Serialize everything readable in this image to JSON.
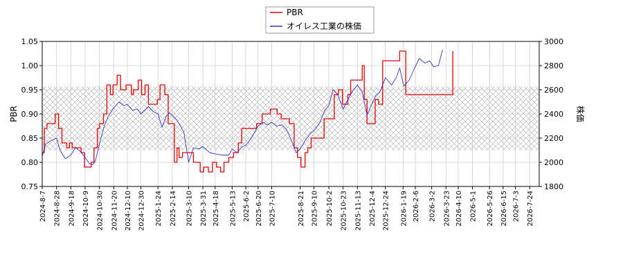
{
  "chart_data": {
    "type": "line",
    "title": "",
    "legend": {
      "placement": "top-center",
      "entries": [
        {
          "label": "PBR",
          "color": "#dd0000"
        },
        {
          "label": "オイレス工業の株価",
          "color": "#3333cc"
        }
      ]
    },
    "y_left": {
      "label": "PBR",
      "min": 0.75,
      "max": 1.05,
      "ticks": [
        "0.75",
        "0.80",
        "0.85",
        "0.90",
        "0.95",
        "1.00",
        "1.05"
      ]
    },
    "y_right": {
      "label": "株価",
      "min": 1800,
      "max": 3000,
      "ticks": [
        "1800",
        "2000",
        "2200",
        "2400",
        "2600",
        "2800",
        "3000"
      ]
    },
    "x_axis": {
      "start": "2024-08-07",
      "end": "2026-08-07",
      "tick_labels": [
        "2024-8-7",
        "2024-8-28",
        "2024-9-18",
        "2024-10-9",
        "2024-10-30",
        "2024-11-20",
        "2024-12-10",
        "2024-12-30",
        "2025-1-24",
        "2025-2-14",
        "2025-3-10",
        "2025-3-31",
        "2025-4-18",
        "2025-5-13",
        "2025-6-2",
        "2025-6-20",
        "2025-7-10",
        "2025-8-21",
        "2025-9-10",
        "2025-10-2",
        "2025-10-23",
        "2025-11-13",
        "2025-12-4",
        "2025-12-24",
        "2026-1-19",
        "2026-2-6",
        "2026-3-2",
        "2026-3-23",
        "2026-4-10",
        "2026-5-1",
        "2026-5-26",
        "2026-6-15",
        "2026-7-3",
        "2026-7-24"
      ]
    },
    "grid": true,
    "band": {
      "from": 0.825,
      "to": 0.957,
      "pattern": "crosshatch"
    },
    "series": [
      {
        "name": "PBR",
        "axis": "left",
        "color": "#dd0000",
        "step": true,
        "points": [
          [
            "2024-08-07",
            0.82
          ],
          [
            "2024-08-10",
            0.87
          ],
          [
            "2024-08-14",
            0.88
          ],
          [
            "2024-08-26",
            0.9
          ],
          [
            "2024-08-31",
            0.87
          ],
          [
            "2024-09-05",
            0.84
          ],
          [
            "2024-09-12",
            0.83
          ],
          [
            "2024-09-16",
            0.84
          ],
          [
            "2024-09-20",
            0.83
          ],
          [
            "2024-10-03",
            0.82
          ],
          [
            "2024-10-08",
            0.79
          ],
          [
            "2024-10-14",
            0.79
          ],
          [
            "2024-10-18",
            0.8
          ],
          [
            "2024-10-22",
            0.83
          ],
          [
            "2024-10-27",
            0.87
          ],
          [
            "2024-10-30",
            0.88
          ],
          [
            "2024-11-05",
            0.9
          ],
          [
            "2024-11-10",
            0.96
          ],
          [
            "2024-11-15",
            0.94
          ],
          [
            "2024-11-19",
            0.96
          ],
          [
            "2024-11-25",
            0.98
          ],
          [
            "2024-11-30",
            0.95
          ],
          [
            "2024-12-08",
            0.96
          ],
          [
            "2024-12-16",
            0.94
          ],
          [
            "2024-12-19",
            0.95
          ],
          [
            "2024-12-26",
            0.97
          ],
          [
            "2024-12-31",
            0.94
          ],
          [
            "2025-01-05",
            0.96
          ],
          [
            "2025-01-10",
            0.92
          ],
          [
            "2025-01-23",
            0.93
          ],
          [
            "2025-01-27",
            0.96
          ],
          [
            "2025-02-03",
            0.94
          ],
          [
            "2025-02-08",
            0.88
          ],
          [
            "2025-02-17",
            0.8
          ],
          [
            "2025-02-21",
            0.83
          ],
          [
            "2025-02-24",
            0.81
          ],
          [
            "2025-03-01",
            0.82
          ],
          [
            "2025-03-17",
            0.8
          ],
          [
            "2025-03-27",
            0.78
          ],
          [
            "2025-04-01",
            0.79
          ],
          [
            "2025-04-08",
            0.78
          ],
          [
            "2025-04-14",
            0.8
          ],
          [
            "2025-04-20",
            0.79
          ],
          [
            "2025-04-26",
            0.78
          ],
          [
            "2025-05-01",
            0.8
          ],
          [
            "2025-05-08",
            0.81
          ],
          [
            "2025-05-15",
            0.82
          ],
          [
            "2025-05-22",
            0.84
          ],
          [
            "2025-05-27",
            0.87
          ],
          [
            "2025-06-18",
            0.88
          ],
          [
            "2025-06-26",
            0.9
          ],
          [
            "2025-07-08",
            0.91
          ],
          [
            "2025-07-18",
            0.9
          ],
          [
            "2025-07-24",
            0.89
          ],
          [
            "2025-08-05",
            0.88
          ],
          [
            "2025-08-12",
            0.83
          ],
          [
            "2025-08-17",
            0.81
          ],
          [
            "2025-08-22",
            0.79
          ],
          [
            "2025-08-28",
            0.82
          ],
          [
            "2025-09-01",
            0.83
          ],
          [
            "2025-09-06",
            0.85
          ],
          [
            "2025-09-25",
            0.89
          ],
          [
            "2025-10-10",
            0.94
          ],
          [
            "2025-10-16",
            0.95
          ],
          [
            "2025-10-22",
            0.92
          ],
          [
            "2025-10-30",
            0.94
          ],
          [
            "2025-11-03",
            0.97
          ],
          [
            "2025-11-20",
            1.0
          ],
          [
            "2025-11-23",
            0.93
          ],
          [
            "2025-11-27",
            0.88
          ],
          [
            "2025-12-09",
            0.93
          ],
          [
            "2025-12-14",
            0.92
          ],
          [
            "2025-12-20",
            1.01
          ],
          [
            "2026-01-14",
            1.03
          ],
          [
            "2026-01-23",
            0.94
          ],
          [
            "2026-02-12",
            0.94
          ],
          [
            "2026-03-20",
            0.94
          ],
          [
            "2026-04-02",
            1.03
          ]
        ]
      },
      {
        "name": "オイレス工業の株価",
        "axis": "right",
        "color": "#3333cc",
        "step": false,
        "points": [
          [
            "2024-08-07",
            2050
          ],
          [
            "2024-08-12",
            2150
          ],
          [
            "2024-08-20",
            2180
          ],
          [
            "2024-08-28",
            2200
          ],
          [
            "2024-09-02",
            2100
          ],
          [
            "2024-09-10",
            2030
          ],
          [
            "2024-09-18",
            2060
          ],
          [
            "2024-09-25",
            2120
          ],
          [
            "2024-10-02",
            2090
          ],
          [
            "2024-10-09",
            2040
          ],
          [
            "2024-10-15",
            1990
          ],
          [
            "2024-10-20",
            1980
          ],
          [
            "2024-10-24",
            2010
          ],
          [
            "2024-10-30",
            2150
          ],
          [
            "2024-11-06",
            2300
          ],
          [
            "2024-11-12",
            2380
          ],
          [
            "2024-11-20",
            2450
          ],
          [
            "2024-11-28",
            2500
          ],
          [
            "2024-12-05",
            2470
          ],
          [
            "2024-12-10",
            2480
          ],
          [
            "2024-12-18",
            2430
          ],
          [
            "2024-12-25",
            2440
          ],
          [
            "2024-12-30",
            2400
          ],
          [
            "2025-01-10",
            2460
          ],
          [
            "2025-01-17",
            2420
          ],
          [
            "2025-01-24",
            2400
          ],
          [
            "2025-01-30",
            2290
          ],
          [
            "2025-02-05",
            2380
          ],
          [
            "2025-02-10",
            2410
          ],
          [
            "2025-02-14",
            2390
          ],
          [
            "2025-02-21",
            2350
          ],
          [
            "2025-03-03",
            2250
          ],
          [
            "2025-03-10",
            2000
          ],
          [
            "2025-03-17",
            2120
          ],
          [
            "2025-03-24",
            2110
          ],
          [
            "2025-03-31",
            2130
          ],
          [
            "2025-04-10",
            2080
          ],
          [
            "2025-04-18",
            2070
          ],
          [
            "2025-04-28",
            2060
          ],
          [
            "2025-05-08",
            2060
          ],
          [
            "2025-05-13",
            2110
          ],
          [
            "2025-05-20",
            2080
          ],
          [
            "2025-05-28",
            2130
          ],
          [
            "2025-06-02",
            2140
          ],
          [
            "2025-06-10",
            2200
          ],
          [
            "2025-06-20",
            2300
          ],
          [
            "2025-06-28",
            2330
          ],
          [
            "2025-07-03",
            2310
          ],
          [
            "2025-07-10",
            2330
          ],
          [
            "2025-07-18",
            2300
          ],
          [
            "2025-07-25",
            2310
          ],
          [
            "2025-08-01",
            2270
          ],
          [
            "2025-08-08",
            2180
          ],
          [
            "2025-08-15",
            2080
          ],
          [
            "2025-08-21",
            2110
          ],
          [
            "2025-08-28",
            2180
          ],
          [
            "2025-09-05",
            2240
          ],
          [
            "2025-09-10",
            2260
          ],
          [
            "2025-09-18",
            2320
          ],
          [
            "2025-09-26",
            2430
          ],
          [
            "2025-10-02",
            2470
          ],
          [
            "2025-10-08",
            2600
          ],
          [
            "2025-10-15",
            2560
          ],
          [
            "2025-10-23",
            2440
          ],
          [
            "2025-10-30",
            2520
          ],
          [
            "2025-11-06",
            2590
          ],
          [
            "2025-11-13",
            2640
          ],
          [
            "2025-11-20",
            2580
          ],
          [
            "2025-11-27",
            2390
          ],
          [
            "2025-12-04",
            2480
          ],
          [
            "2025-12-10",
            2550
          ],
          [
            "2025-12-16",
            2580
          ],
          [
            "2025-12-24",
            2700
          ],
          [
            "2026-01-02",
            2640
          ],
          [
            "2026-01-09",
            2700
          ],
          [
            "2026-01-14",
            2780
          ],
          [
            "2026-01-20",
            2630
          ],
          [
            "2026-01-28",
            2680
          ],
          [
            "2026-02-05",
            2780
          ],
          [
            "2026-02-12",
            2860
          ],
          [
            "2026-02-20",
            2820
          ],
          [
            "2026-02-27",
            2840
          ],
          [
            "2026-03-05",
            2790
          ],
          [
            "2026-03-12",
            2800
          ],
          [
            "2026-03-18",
            2930
          ]
        ]
      }
    ]
  }
}
